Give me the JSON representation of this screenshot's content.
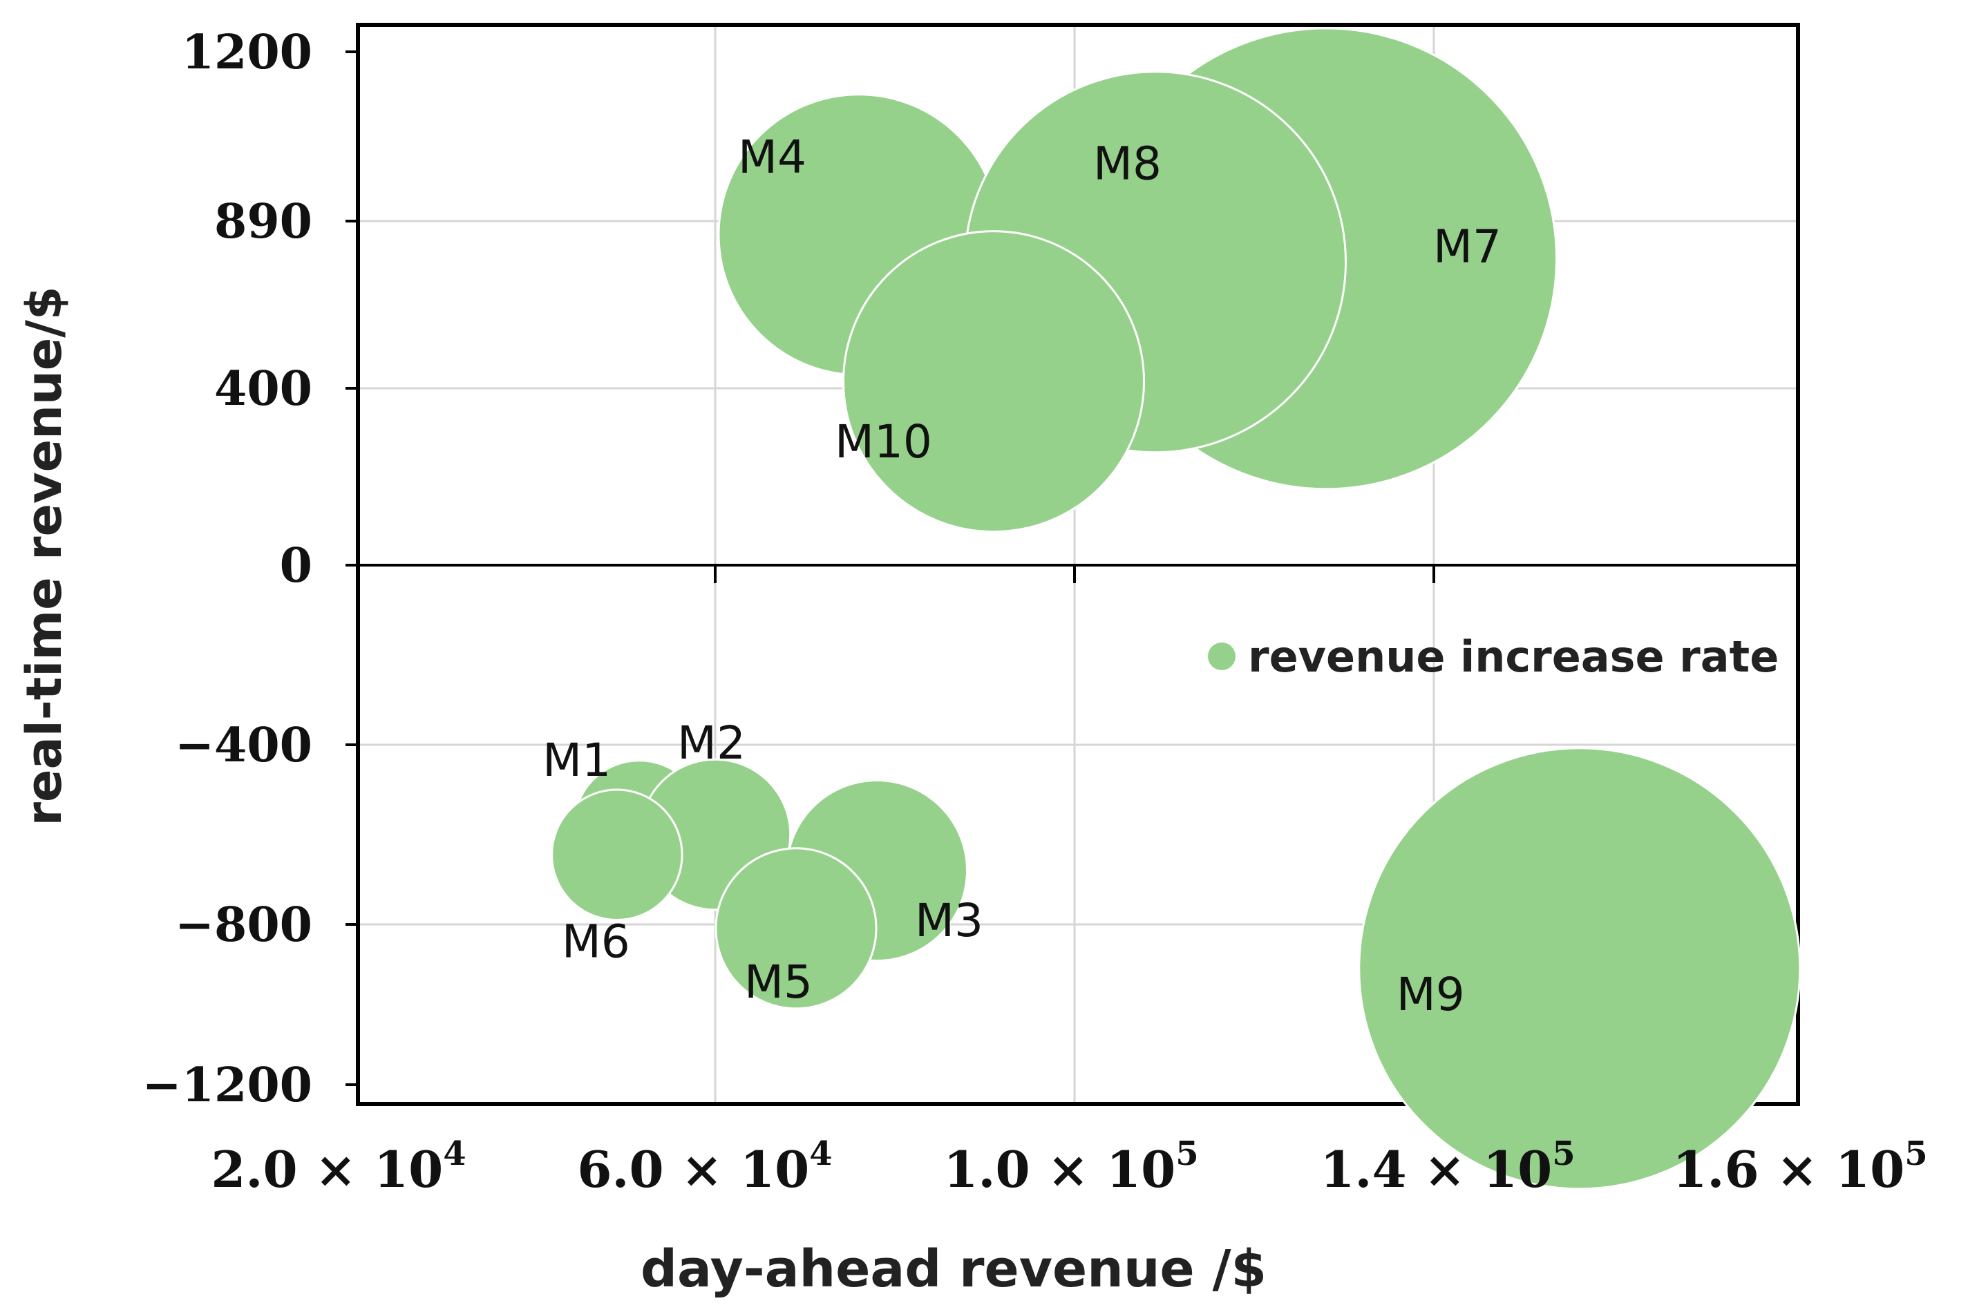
{
  "chart_data": {
    "type": "scatter",
    "subtype": "bubble",
    "title": "",
    "xlabel": "day-ahead revenue /$",
    "ylabel": "real-time revenue/$",
    "x_tick_labels": [
      {
        "value": 20000,
        "mantissa": "2.0",
        "times": "×",
        "base": "10",
        "exp": "4"
      },
      {
        "value": 60000,
        "mantissa": "6.0",
        "times": "×",
        "base": "10",
        "exp": "4"
      },
      {
        "value": 100000,
        "mantissa": "1.0",
        "times": "×",
        "base": "10",
        "exp": "5"
      },
      {
        "value": 140000,
        "mantissa": "1.4",
        "times": "×",
        "base": "10",
        "exp": "5"
      },
      {
        "value": 160000,
        "mantissa": "1.6",
        "times": "×",
        "base": "10",
        "exp": "5"
      }
    ],
    "y_tick_labels": [
      "1200",
      "890",
      "400",
      "0",
      "−400",
      "−800",
      "−1200"
    ],
    "grid": true,
    "legend": {
      "position": "inside-right",
      "entries": [
        "revenue increase rate"
      ]
    },
    "series": [
      {
        "name": "revenue increase rate",
        "color": "#95d18b",
        "points": [
          {
            "label": "M1",
            "x": 51500,
            "y": -580,
            "size": 6.5
          },
          {
            "label": "M2",
            "x": 60000,
            "y": -600,
            "size": 7.5
          },
          {
            "label": "M3",
            "x": 78000,
            "y": -680,
            "size": 9
          },
          {
            "label": "M4",
            "x": 76000,
            "y": 850,
            "size": 14
          },
          {
            "label": "M5",
            "x": 69000,
            "y": -810,
            "size": 8
          },
          {
            "label": "M6",
            "x": 49000,
            "y": -645,
            "size": 6.5
          },
          {
            "label": "M7",
            "x": 128000,
            "y": 780,
            "size": 23
          },
          {
            "label": "M8",
            "x": 109000,
            "y": 770,
            "size": 19
          },
          {
            "label": "M9",
            "x": 148000,
            "y": -910,
            "size": 22
          },
          {
            "label": "M10",
            "x": 91000,
            "y": 420,
            "size": 15
          }
        ]
      }
    ]
  }
}
